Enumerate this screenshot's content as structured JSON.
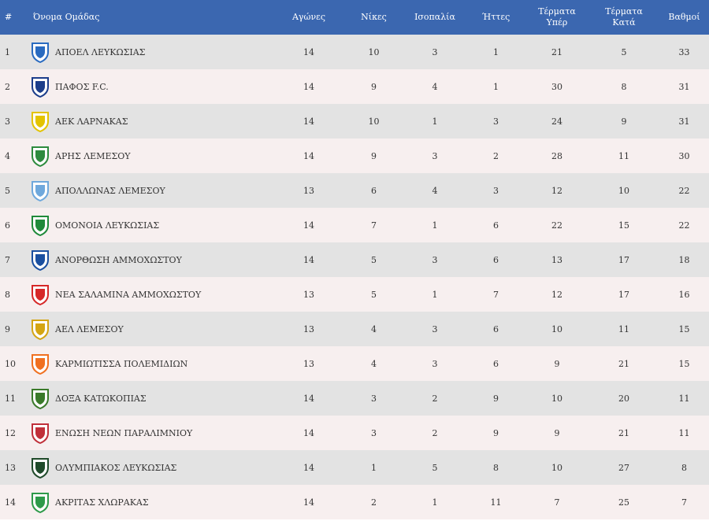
{
  "headers": {
    "rank": "#",
    "team": "Όνομα Ομάδας",
    "played": "Αγώνες",
    "wins": "Νίκες",
    "draws": "Ισοπαλία",
    "losses": "Ήττες",
    "gf_line1": "Τέρματα",
    "gf_line2": "Υπέρ",
    "ga_line1": "Τέρματα",
    "ga_line2": "Κατά",
    "points": "Βαθμοί"
  },
  "rows": [
    {
      "rank": "1",
      "team": "ΑΠΟΕΛ ΛΕΥΚΩΣΙΑΣ",
      "played": "14",
      "wins": "10",
      "draws": "3",
      "losses": "1",
      "gf": "21",
      "ga": "5",
      "pts": "33",
      "logo": "apoel-logo-icon",
      "color": "#2a6bc0"
    },
    {
      "rank": "2",
      "team": "ΠΑΦΟΣ F.C.",
      "played": "14",
      "wins": "9",
      "draws": "4",
      "losses": "1",
      "gf": "30",
      "ga": "8",
      "pts": "31",
      "logo": "pafos-logo-icon",
      "color": "#1b3d8a"
    },
    {
      "rank": "3",
      "team": "ΑΕΚ ΛΑΡΝΑΚΑΣ",
      "played": "14",
      "wins": "10",
      "draws": "1",
      "losses": "3",
      "gf": "24",
      "ga": "9",
      "pts": "31",
      "logo": "aek-logo-icon",
      "color": "#e3c300"
    },
    {
      "rank": "4",
      "team": "ΑΡΗΣ ΛΕΜΕΣΟΥ",
      "played": "14",
      "wins": "9",
      "draws": "3",
      "losses": "2",
      "gf": "28",
      "ga": "11",
      "pts": "30",
      "logo": "aris-logo-icon",
      "color": "#2e8b3e"
    },
    {
      "rank": "5",
      "team": "ΑΠΟΛΛΩΝΑΣ ΛΕΜΕΣΟΥ",
      "played": "13",
      "wins": "6",
      "draws": "4",
      "losses": "3",
      "gf": "12",
      "ga": "10",
      "pts": "22",
      "logo": "apollon-logo-icon",
      "color": "#6fa8dc"
    },
    {
      "rank": "6",
      "team": "ΟΜΟΝΟΙΑ ΛΕΥΚΩΣΙΑΣ",
      "played": "14",
      "wins": "7",
      "draws": "1",
      "losses": "6",
      "gf": "22",
      "ga": "15",
      "pts": "22",
      "logo": "omonoia-logo-icon",
      "color": "#1f8a3a"
    },
    {
      "rank": "7",
      "team": "ΑΝΟΡΘΩΣΗ ΑΜΜΟΧΩΣΤΟΥ",
      "played": "14",
      "wins": "5",
      "draws": "3",
      "losses": "6",
      "gf": "13",
      "ga": "17",
      "pts": "18",
      "logo": "anorthosis-logo-icon",
      "color": "#1a4fa0"
    },
    {
      "rank": "8",
      "team": "ΝΕΑ ΣΑΛΑΜΙΝΑ ΑΜΜΟΧΩΣΤΟΥ",
      "played": "13",
      "wins": "5",
      "draws": "1",
      "losses": "7",
      "gf": "12",
      "ga": "17",
      "pts": "16",
      "logo": "nea-salamina-logo-icon",
      "color": "#d62828"
    },
    {
      "rank": "9",
      "team": "ΑΕΛ ΛΕΜΕΣΟΥ",
      "played": "13",
      "wins": "4",
      "draws": "3",
      "losses": "6",
      "gf": "10",
      "ga": "11",
      "pts": "15",
      "logo": "ael-logo-icon",
      "color": "#d4a514"
    },
    {
      "rank": "10",
      "team": "ΚΑΡΜΙΩΤΙΣΣΑ ΠΟΛΕΜΙΔΙΩΝ",
      "played": "13",
      "wins": "4",
      "draws": "3",
      "losses": "6",
      "gf": "9",
      "ga": "21",
      "pts": "15",
      "logo": "karmiotissa-logo-icon",
      "color": "#f07020"
    },
    {
      "rank": "11",
      "team": "ΔΟΞΑ ΚΑΤΩΚΟΠΙΑΣ",
      "played": "14",
      "wins": "3",
      "draws": "2",
      "losses": "9",
      "gf": "10",
      "ga": "20",
      "pts": "11",
      "logo": "doxa-logo-icon",
      "color": "#3a7a2a"
    },
    {
      "rank": "12",
      "team": "ΕΝΩΣΗ ΝΕΩΝ ΠΑΡΑΛΙΜΝΙΟΥ",
      "played": "14",
      "wins": "3",
      "draws": "2",
      "losses": "9",
      "gf": "9",
      "ga": "21",
      "pts": "11",
      "logo": "enp-logo-icon",
      "color": "#c0303a"
    },
    {
      "rank": "13",
      "team": "ΟΛΥΜΠΙΑΚΟΣ ΛΕΥΚΩΣΙΑΣ",
      "played": "14",
      "wins": "1",
      "draws": "5",
      "losses": "8",
      "gf": "10",
      "ga": "27",
      "pts": "8",
      "logo": "olympiakos-logo-icon",
      "color": "#1f4a2a"
    },
    {
      "rank": "14",
      "team": "ΑΚΡΙΤΑΣ ΧΛΩΡΑΚΑΣ",
      "played": "14",
      "wins": "2",
      "draws": "1",
      "losses": "11",
      "gf": "7",
      "ga": "25",
      "pts": "7",
      "logo": "akritas-logo-icon",
      "color": "#2e9a4a"
    }
  ]
}
